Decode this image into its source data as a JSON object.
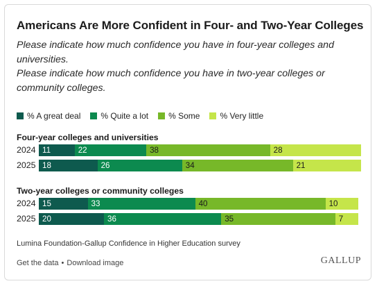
{
  "title": "Americans Are More Confident in Four- and Two-Year Colleges",
  "subtitle_1": "Please indicate how much confidence you have in four-year colleges and universities.",
  "subtitle_2": "Please indicate how much confidence you have in two-year colleges or community colleges.",
  "source": "Lumina Foundation-Gallup Confidence in Higher Education survey",
  "footer": {
    "get_data": "Get the data",
    "separator": "•",
    "download": "Download image"
  },
  "brand": "GALLUP",
  "colors": {
    "great_deal": "#0e5a4e",
    "quite_a_lot": "#0c8a4f",
    "some": "#77b829",
    "very_little": "#c5e54a",
    "label_dark_text": "#ffffff",
    "label_light_text": "#1b1b1b"
  },
  "chart_data": {
    "type": "bar",
    "orientation": "horizontal",
    "stacked": true,
    "legend": [
      "% A great deal",
      "% Quite a lot",
      "% Some",
      "% Very little"
    ],
    "legend_placement": "top-left",
    "xlim": [
      0,
      100
    ],
    "groups": [
      {
        "title": "Four-year colleges and universities",
        "rows": [
          {
            "label": "2024",
            "values": [
              11,
              22,
              38,
              28
            ]
          },
          {
            "label": "2025",
            "values": [
              18,
              26,
              34,
              21
            ]
          }
        ]
      },
      {
        "title": "Two-year colleges or community colleges",
        "rows": [
          {
            "label": "2024",
            "values": [
              15,
              33,
              40,
              10
            ]
          },
          {
            "label": "2025",
            "values": [
              20,
              36,
              35,
              7
            ]
          }
        ]
      }
    ]
  }
}
